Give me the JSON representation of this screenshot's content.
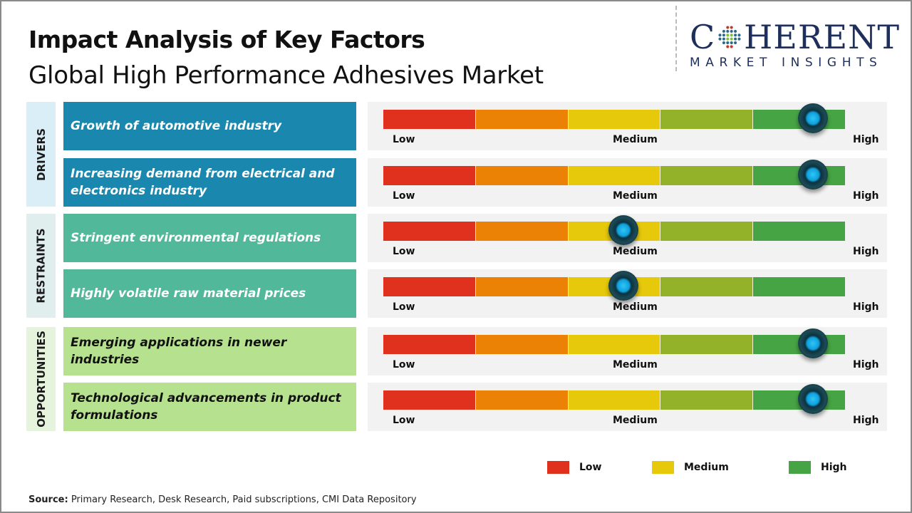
{
  "header": {
    "title": "Impact Analysis of Key Factors",
    "subtitle": "Global High Performance Adhesives Market"
  },
  "logo": {
    "brand_left": "C",
    "brand_right": "HERENT",
    "tagline": "MARKET INSIGHTS"
  },
  "colors": {
    "low": "#e0301e",
    "low_medium": "#eb8205",
    "medium": "#e5c90a",
    "medium_high": "#93b22a",
    "high": "#46a445",
    "knob": "#16b4ee"
  },
  "chart_data": {
    "type": "gauge-bar",
    "scale": [
      "Low",
      "Medium",
      "High"
    ],
    "segments": 5,
    "categories": [
      {
        "name": "DRIVERS",
        "box_color": "#1a88ae",
        "tab_color": "#daeef7",
        "text_color": "#ffffff",
        "factors": [
          {
            "label": "Growth of automotive industry",
            "impact": "High",
            "position": 0.93
          },
          {
            "label": "Increasing demand from electrical and electronics industry",
            "impact": "High",
            "position": 0.93
          }
        ]
      },
      {
        "name": "RESTRAINTS",
        "box_color": "#52b89a",
        "tab_color": "#e0eeee",
        "text_color": "#ffffff",
        "factors": [
          {
            "label": "Stringent environmental regulations",
            "impact": "Medium",
            "position": 0.52
          },
          {
            "label": "Highly volatile raw material prices",
            "impact": "Medium",
            "position": 0.52
          }
        ]
      },
      {
        "name": "OPPORTUNITIES",
        "box_color": "#b6e290",
        "tab_color": "#e6f4de",
        "text_color": "#111111",
        "factors": [
          {
            "label": "Emerging applications in newer industries",
            "impact": "High",
            "position": 0.93
          },
          {
            "label": "Technological advancements in product formulations",
            "impact": "High",
            "position": 0.93
          }
        ]
      }
    ],
    "legend": [
      {
        "label": "Low",
        "color": "#e0301e"
      },
      {
        "label": "Medium",
        "color": "#e5c90a"
      },
      {
        "label": "High",
        "color": "#46a445"
      }
    ],
    "legend_placement": "bottom-right"
  },
  "footer": {
    "source_label": "Source:",
    "source_text": " Primary Research, Desk Research, Paid subscriptions, CMI Data Repository"
  }
}
